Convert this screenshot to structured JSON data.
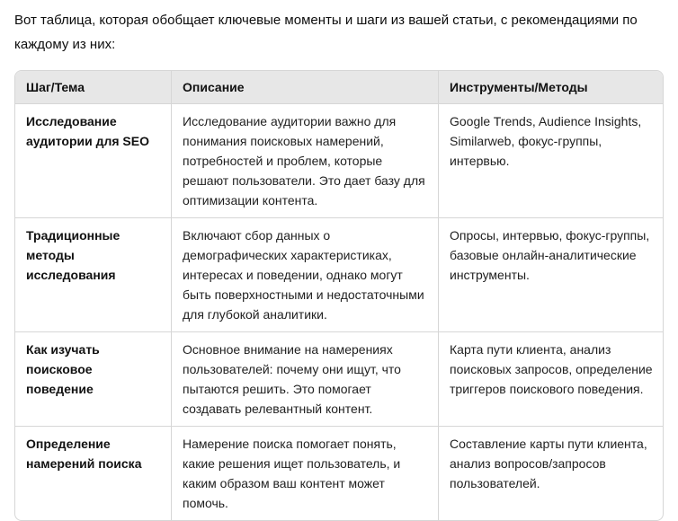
{
  "intro": "Вот таблица, которая обобщает ключевые моменты и шаги из вашей статьи, с рекомендациями по каждому из них:",
  "table": {
    "headers": [
      "Шаг/Тема",
      "Описание",
      "Инструменты/Методы"
    ],
    "rows": [
      {
        "topic": "Исследование аудитории для SEO",
        "description": "Исследование аудитории важно для понимания поисковых намерений, потребностей и проблем, которые решают пользователи. Это дает базу для оптимизации контента.",
        "tools": "Google Trends, Audience Insights, Similarweb, фокус-группы, интервью."
      },
      {
        "topic": "Традиционные методы исследования",
        "description": "Включают сбор данных о демографических характеристиках, интересах и поведении, однако могут быть поверхностными и недостаточными для глубокой аналитики.",
        "tools": "Опросы, интервью, фокус-группы, базовые онлайн-аналитические инструменты."
      },
      {
        "topic": "Как изучать поисковое поведение",
        "description": "Основное внимание на намерениях пользователей: почему они ищут, что пытаются решить. Это помогает создавать релевантный контент.",
        "tools": "Карта пути клиента, анализ поисковых запросов, определение триггеров поискового поведения."
      },
      {
        "topic": "Определение намерений поиска",
        "description": "Намерение поиска помогает понять, какие решения ищет пользователь, и каким образом ваш контент может помочь.",
        "tools": "Составление карты пути клиента, анализ вопросов/запросов пользователей."
      }
    ]
  },
  "colors": {
    "header_bg": "#e7e7e7",
    "border": "#d6d6d6",
    "text": "#1a1a1a"
  }
}
